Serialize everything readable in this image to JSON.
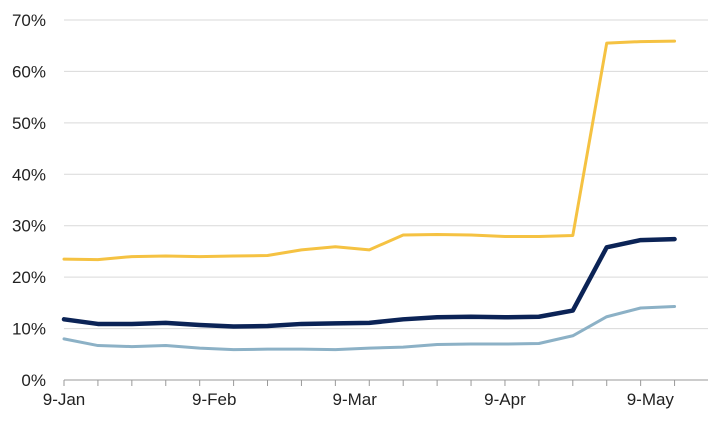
{
  "chart_data": {
    "type": "line",
    "title": "",
    "xlabel": "",
    "ylabel": "",
    "x_tick_labels": [
      "9-Jan",
      "9-Feb",
      "9-Mar",
      "9-Apr",
      "9-May"
    ],
    "y_tick_labels": [
      "0%",
      "10%",
      "20%",
      "30%",
      "40%",
      "50%",
      "60%",
      "70%"
    ],
    "ylim": [
      0,
      70
    ],
    "y_ticks": [
      0,
      10,
      20,
      30,
      40,
      50,
      60,
      70
    ],
    "grid": "horizontal",
    "legend": "none",
    "x": [
      "2020-01-09",
      "2020-01-16",
      "2020-01-23",
      "2020-01-30",
      "2020-02-06",
      "2020-02-13",
      "2020-02-20",
      "2020-02-27",
      "2020-03-05",
      "2020-03-12",
      "2020-03-19",
      "2020-03-26",
      "2020-04-02",
      "2020-04-09",
      "2020-04-16",
      "2020-04-23",
      "2020-04-30",
      "2020-05-07",
      "2020-05-14"
    ],
    "series": [
      {
        "color": "#F5C242",
        "values": [
          23.5,
          23.4,
          24.0,
          24.1,
          24.0,
          24.1,
          24.2,
          25.3,
          25.9,
          25.3,
          28.2,
          28.3,
          28.2,
          27.9,
          27.9,
          28.1,
          65.5,
          65.8,
          65.9
        ]
      },
      {
        "color": "#0B2356",
        "values": [
          11.8,
          10.9,
          10.9,
          11.1,
          10.7,
          10.4,
          10.5,
          10.9,
          11.0,
          11.1,
          11.8,
          12.2,
          12.3,
          12.2,
          12.3,
          13.5,
          25.8,
          27.2,
          27.4
        ]
      },
      {
        "color": "#8CB1C6",
        "values": [
          8.0,
          6.7,
          6.5,
          6.7,
          6.2,
          5.9,
          6.0,
          6.0,
          5.9,
          6.2,
          6.4,
          6.9,
          7.0,
          7.0,
          7.1,
          8.6,
          12.3,
          14.0,
          14.3
        ]
      }
    ]
  }
}
